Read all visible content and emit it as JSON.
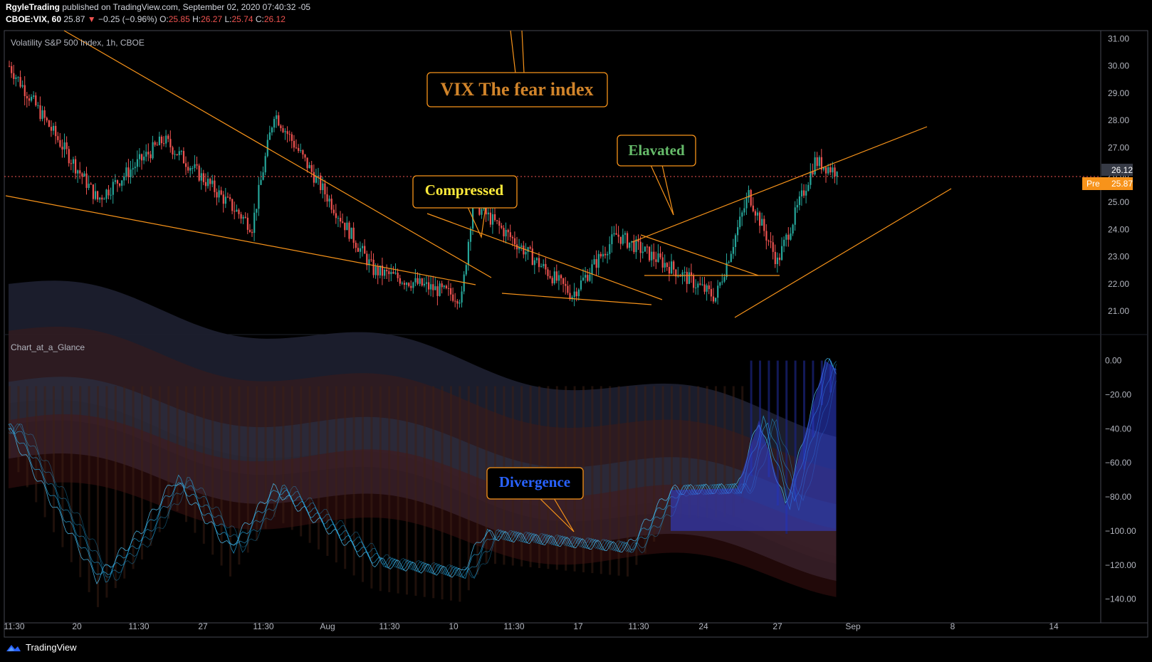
{
  "header": {
    "publisher": "RgyleTrading",
    "published_text": "published on TradingView.com, September 02, 2020 07:40:32 -05",
    "symbol": "CBOE:VIX, 60",
    "last": "25.87",
    "change_arrow": "▼",
    "change": "−0.25 (−0.96%)",
    "o_label": "O:",
    "o": "25.85",
    "h_label": "H:",
    "h": "26.27",
    "l_label": "L:",
    "l": "25.74",
    "c_label": "C:",
    "c": "26.12"
  },
  "main_pane": {
    "legend": "Volatility S&P 500 Index, 1h, CBOE",
    "price_tag": "26.12",
    "pre_label": "Pre",
    "pre_value": "25.87"
  },
  "indicator_pane": {
    "legend": "Chart_at_a_Glance"
  },
  "annotations": {
    "title": "VIX The fear index",
    "compressed": "Compressed",
    "elevated": "Elavated",
    "divergence": "Divergence"
  },
  "colors": {
    "up": "#26a69a",
    "down": "#ef5350",
    "trendline": "#f7931a",
    "price_line": "#ef5350",
    "tag_bg": "#f7931a",
    "title_color": "#d1842a",
    "compressed_color": "#ffeb3b",
    "elevated_color": "#66bb6a",
    "divergence_color": "#2962ff"
  },
  "footer": {
    "brand": "TradingView"
  },
  "chart_data": [
    {
      "type": "candlestick",
      "title": "Volatility S&P 500 Index, 1h, CBOE",
      "y_ticks": [
        "31.00",
        "30.00",
        "29.00",
        "28.00",
        "27.00",
        "26.00",
        "25.00",
        "24.00",
        "23.00",
        "22.00",
        "21.00"
      ],
      "ylim": [
        20.4,
        31.3
      ],
      "x_ticks": [
        "11:30",
        "20",
        "11:30",
        "27",
        "11:30",
        "Aug",
        "11:30",
        "10",
        "11:30",
        "17",
        "11:30",
        "24",
        "27",
        "Sep",
        "8",
        "14"
      ],
      "last_close": 26.12,
      "key_points": [
        {
          "x": 0,
          "close": 30.0
        },
        {
          "x": 40,
          "close": 25.1
        },
        {
          "x": 70,
          "close": 27.3
        },
        {
          "x": 110,
          "close": 24.1
        },
        {
          "x": 120,
          "close": 28.3
        },
        {
          "x": 165,
          "close": 22.5
        },
        {
          "x": 205,
          "close": 21.5
        },
        {
          "x": 210,
          "close": 25.0
        },
        {
          "x": 255,
          "close": 21.6
        },
        {
          "x": 275,
          "close": 23.8
        },
        {
          "x": 300,
          "close": 22.6
        },
        {
          "x": 320,
          "close": 21.5
        },
        {
          "x": 335,
          "close": 25.3
        },
        {
          "x": 348,
          "close": 22.8
        },
        {
          "x": 365,
          "close": 26.5
        },
        {
          "x": 375,
          "close": 26.12
        }
      ],
      "series": [
        {
          "name": "VIX"
        }
      ]
    },
    {
      "type": "area",
      "title": "Chart_at_a_Glance",
      "y_ticks": [
        "0.00",
        "−20.00",
        "−40.00",
        "−60.00",
        "−80.00",
        "−100.00",
        "−120.00",
        "−140.00"
      ],
      "ylim": [
        -146,
        4
      ],
      "key_points": [
        {
          "x": 0,
          "y": -40
        },
        {
          "x": 40,
          "y": -128
        },
        {
          "x": 60,
          "y": -100
        },
        {
          "x": 75,
          "y": -70
        },
        {
          "x": 100,
          "y": -110
        },
        {
          "x": 120,
          "y": -75
        },
        {
          "x": 165,
          "y": -118
        },
        {
          "x": 205,
          "y": -125
        },
        {
          "x": 215,
          "y": -102
        },
        {
          "x": 280,
          "y": -110
        },
        {
          "x": 300,
          "y": -76
        },
        {
          "x": 330,
          "y": -75
        },
        {
          "x": 340,
          "y": -35
        },
        {
          "x": 352,
          "y": -85
        },
        {
          "x": 370,
          "y": 0
        },
        {
          "x": 375,
          "y": -5
        }
      ]
    }
  ]
}
